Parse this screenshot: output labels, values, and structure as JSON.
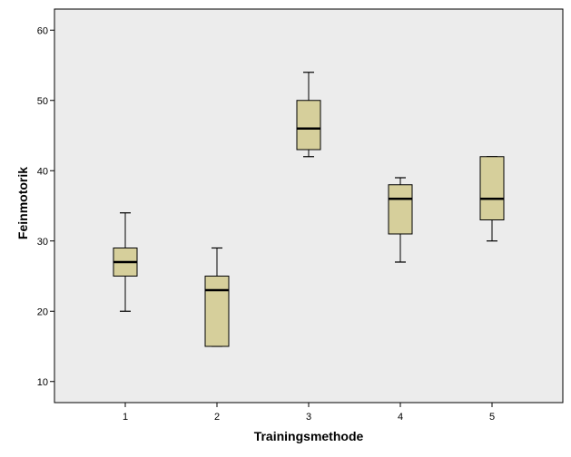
{
  "chart_data": {
    "type": "boxplot",
    "title": "",
    "xlabel": "Trainingsmethode",
    "ylabel": "Feinmotorik",
    "categories": [
      "1",
      "2",
      "3",
      "4",
      "5"
    ],
    "yticks": [
      10,
      20,
      30,
      40,
      50,
      60
    ],
    "ylim": [
      7,
      63
    ],
    "grid": false,
    "boxes": [
      {
        "category": "1",
        "min": 20,
        "q1": 25,
        "median": 27,
        "q3": 29,
        "max": 34
      },
      {
        "category": "2",
        "min": 15,
        "q1": 15,
        "median": 23,
        "q3": 25,
        "max": 29
      },
      {
        "category": "3",
        "min": 42,
        "q1": 43,
        "median": 46,
        "q3": 50,
        "max": 54
      },
      {
        "category": "4",
        "min": 27,
        "q1": 31,
        "median": 36,
        "q3": 38,
        "max": 39
      },
      {
        "category": "5",
        "min": 30,
        "q1": 33,
        "median": 36,
        "q3": 42,
        "max": 42
      }
    ]
  },
  "colors": {
    "plot_background": "#ececec",
    "box_fill": "#d6cf9b",
    "stroke": "#000000"
  }
}
